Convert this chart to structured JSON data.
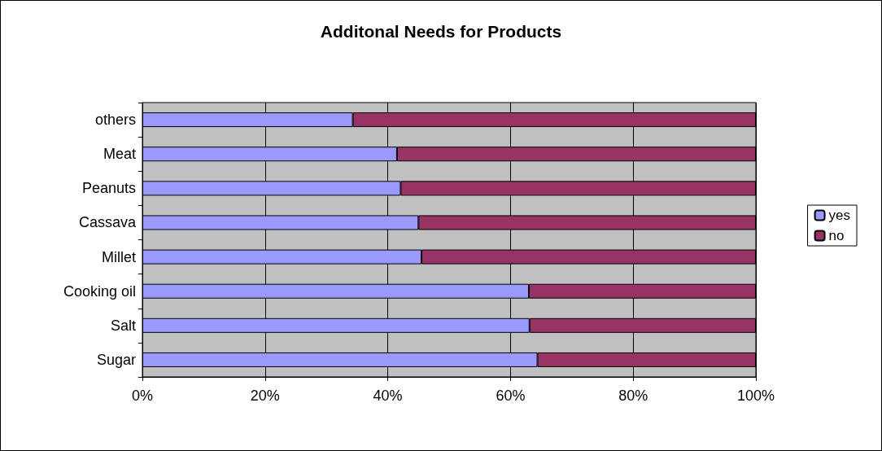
{
  "chart_data": {
    "type": "bar",
    "title": "Additonal Needs for Products",
    "orientation": "horizontal",
    "stacked": true,
    "categories": [
      "others",
      "Meat",
      "Peanuts",
      "Cassava",
      "Millet",
      "Cooking oil",
      "Salt",
      "Sugar"
    ],
    "series": [
      {
        "name": "yes",
        "color": "#9999ff",
        "values": [
          34.3,
          41.5,
          42.1,
          45.0,
          45.5,
          63.0,
          63.1,
          64.4
        ]
      },
      {
        "name": "no",
        "color": "#993366",
        "values": [
          65.7,
          58.5,
          57.9,
          55.0,
          54.5,
          37.0,
          36.9,
          35.6
        ]
      }
    ],
    "xlim": [
      0,
      100
    ],
    "xticks": [
      {
        "value": 0,
        "label": "0%"
      },
      {
        "value": 20,
        "label": "20%"
      },
      {
        "value": 40,
        "label": "40%"
      },
      {
        "value": 60,
        "label": "60%"
      },
      {
        "value": 80,
        "label": "80%"
      },
      {
        "value": 100,
        "label": "100%"
      }
    ],
    "grid": "x",
    "legend": "right"
  }
}
